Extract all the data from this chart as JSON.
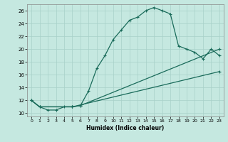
{
  "title": "",
  "xlabel": "Humidex (Indice chaleur)",
  "ylabel": "",
  "bg_color": "#c5e8e0",
  "grid_color": "#a8d0c8",
  "line_color": "#1a6b5a",
  "xlim": [
    -0.5,
    23.5
  ],
  "ylim": [
    9.5,
    27
  ],
  "xticks": [
    0,
    1,
    2,
    3,
    4,
    5,
    6,
    7,
    8,
    9,
    10,
    11,
    12,
    13,
    14,
    15,
    16,
    17,
    18,
    19,
    20,
    21,
    22,
    23
  ],
  "yticks": [
    10,
    12,
    14,
    16,
    18,
    20,
    22,
    24,
    26
  ],
  "line1_x": [
    0,
    1,
    2,
    3,
    4,
    5,
    6,
    7,
    8,
    9,
    10,
    11,
    12,
    13,
    14,
    15,
    16,
    17,
    18,
    19,
    20,
    21,
    22,
    23
  ],
  "line1_y": [
    12,
    11,
    10.5,
    10.5,
    11,
    11,
    11.2,
    13.5,
    17,
    19,
    21.5,
    23,
    24.5,
    25,
    26,
    26.5,
    26,
    25.5,
    20.5,
    20,
    19.5,
    18.5,
    20,
    19
  ],
  "line2_x": [
    0,
    1,
    5,
    6,
    23
  ],
  "line2_y": [
    12,
    11,
    11,
    11.2,
    20
  ],
  "line3_x": [
    0,
    1,
    5,
    23
  ],
  "line3_y": [
    12,
    11,
    11,
    16.5
  ],
  "marker_size": 3,
  "linewidth": 0.9
}
